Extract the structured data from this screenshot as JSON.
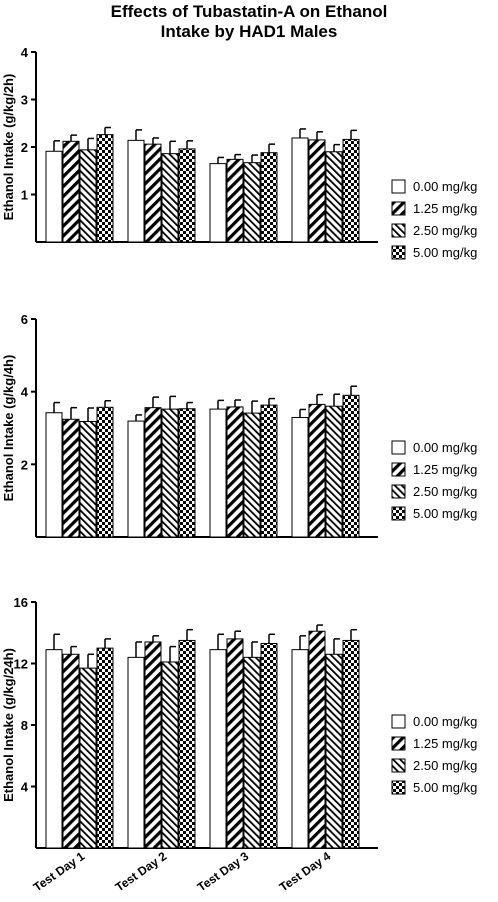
{
  "title": {
    "line1": "Effects of Tubastatin-A on Ethanol",
    "line2": "Intake by HAD1 Males"
  },
  "legend": [
    "0.00 mg/kg",
    "1.25 mg/kg",
    "2.50 mg/kg",
    "5.00 mg/kg"
  ],
  "chart_data": [
    {
      "type": "bar",
      "ylabel": "Ethanol Intake  (g/kg/2h)",
      "ylim": [
        0,
        4
      ],
      "yticks": [
        1,
        2,
        3,
        4
      ],
      "categories": [
        "Test Day 1",
        "Test Day 2",
        "Test Day 3",
        "Test Day 4"
      ],
      "series": [
        {
          "name": "0.00 mg/kg",
          "values": [
            1.91,
            2.14,
            1.65,
            2.19
          ],
          "errors": [
            0.22,
            0.22,
            0.13,
            0.19
          ]
        },
        {
          "name": "1.25 mg/kg",
          "values": [
            2.12,
            2.06,
            1.74,
            2.15
          ],
          "errors": [
            0.13,
            0.13,
            0.1,
            0.17
          ]
        },
        {
          "name": "2.50 mg/kg",
          "values": [
            1.94,
            1.86,
            1.67,
            1.9
          ],
          "errors": [
            0.24,
            0.26,
            0.16,
            0.15
          ]
        },
        {
          "name": "5.00 mg/kg",
          "values": [
            2.26,
            1.96,
            1.88,
            2.16
          ],
          "errors": [
            0.15,
            0.17,
            0.18,
            0.19
          ]
        }
      ]
    },
    {
      "type": "bar",
      "ylabel": "Ethanol Intake  (g/kg/4h)",
      "ylim": [
        0,
        6
      ],
      "yticks": [
        2,
        4,
        6
      ],
      "categories": [
        "Test Day 1",
        "Test Day 2",
        "Test Day 3",
        "Test Day 4"
      ],
      "series": [
        {
          "name": "0.00 mg/kg",
          "values": [
            3.42,
            3.19,
            3.52,
            3.29
          ],
          "errors": [
            0.28,
            0.17,
            0.24,
            0.22
          ]
        },
        {
          "name": "1.25 mg/kg",
          "values": [
            3.24,
            3.56,
            3.58,
            3.65
          ],
          "errors": [
            0.32,
            0.29,
            0.19,
            0.27
          ]
        },
        {
          "name": "2.50 mg/kg",
          "values": [
            3.18,
            3.52,
            3.41,
            3.6
          ],
          "errors": [
            0.37,
            0.35,
            0.33,
            0.33
          ]
        },
        {
          "name": "5.00 mg/kg",
          "values": [
            3.57,
            3.53,
            3.63,
            3.9
          ],
          "errors": [
            0.18,
            0.17,
            0.18,
            0.25
          ]
        }
      ]
    },
    {
      "type": "bar",
      "ylabel": "Ethanol Intake  (g/kg/24h)",
      "ylim": [
        0,
        16
      ],
      "yticks": [
        4,
        8,
        12,
        16
      ],
      "categories": [
        "Test Day 1",
        "Test Day 2",
        "Test Day 3",
        "Test Day 4"
      ],
      "series": [
        {
          "name": "0.00 mg/kg",
          "values": [
            12.9,
            12.4,
            12.9,
            12.9
          ],
          "errors": [
            1.0,
            1.0,
            1.0,
            0.9
          ]
        },
        {
          "name": "1.25 mg/kg",
          "values": [
            12.6,
            13.4,
            13.6,
            14.1
          ],
          "errors": [
            0.5,
            0.4,
            0.5,
            0.4
          ]
        },
        {
          "name": "2.50 mg/kg",
          "values": [
            11.7,
            12.1,
            12.4,
            12.6
          ],
          "errors": [
            0.9,
            1.0,
            1.0,
            1.0
          ]
        },
        {
          "name": "5.00 mg/kg",
          "values": [
            13.0,
            13.5,
            13.3,
            13.5
          ],
          "errors": [
            0.6,
            0.7,
            0.6,
            0.7
          ]
        }
      ]
    }
  ]
}
